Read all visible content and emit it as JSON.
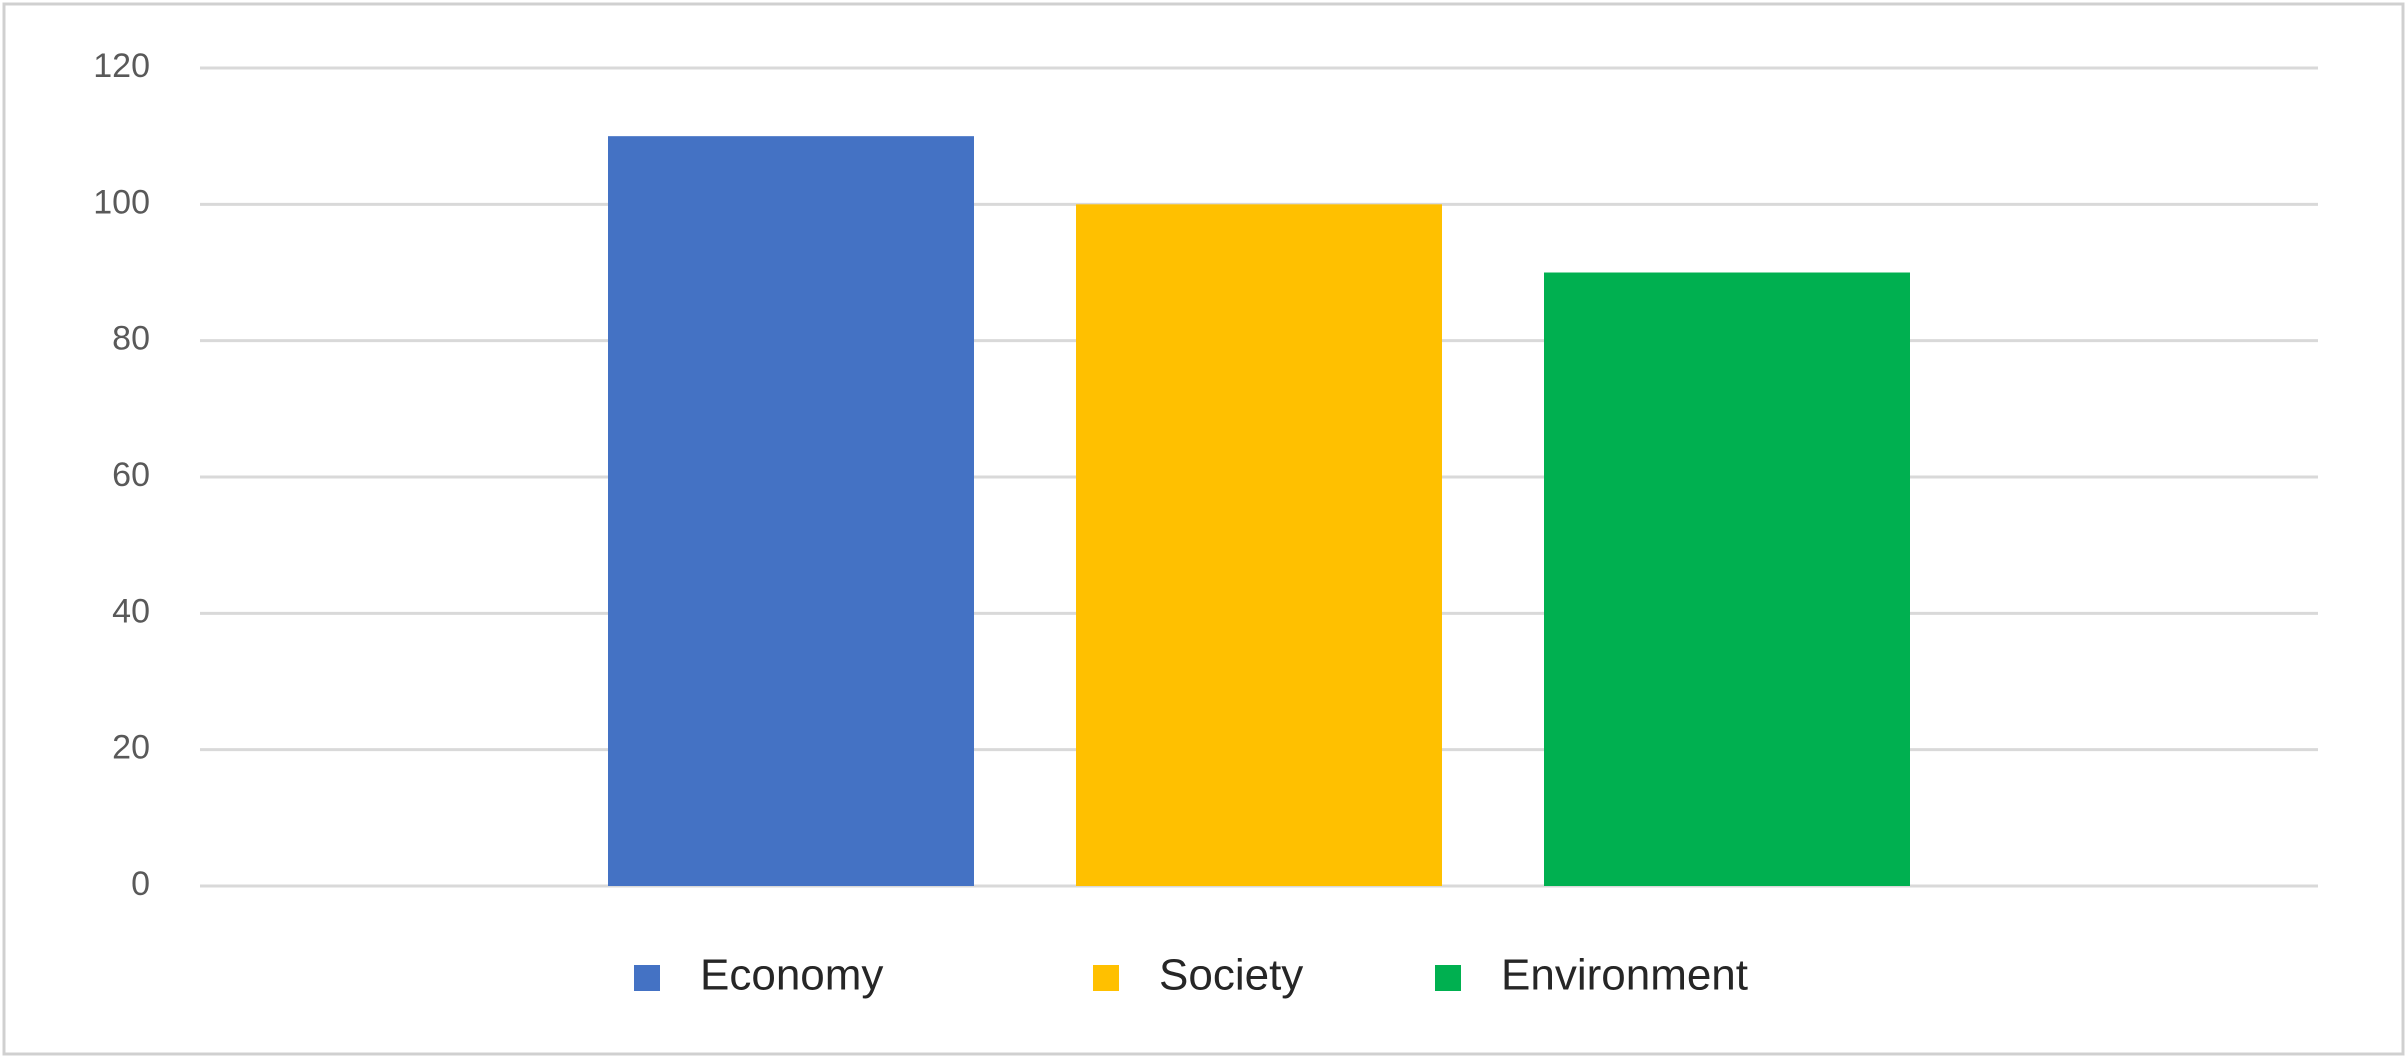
{
  "chart_data": {
    "type": "bar",
    "categories": [
      null
    ],
    "series": [
      {
        "name": "Economy",
        "color": "#4472c4",
        "values": [
          110
        ]
      },
      {
        "name": "Society",
        "color": "#ffc000",
        "values": [
          100
        ]
      },
      {
        "name": "Environment",
        "color": "#00b050",
        "values": [
          90
        ]
      }
    ],
    "ylim": [
      0,
      120
    ],
    "yticks": [
      0,
      20,
      40,
      60,
      80,
      100,
      120
    ],
    "grid": true,
    "legend": "bottom"
  }
}
